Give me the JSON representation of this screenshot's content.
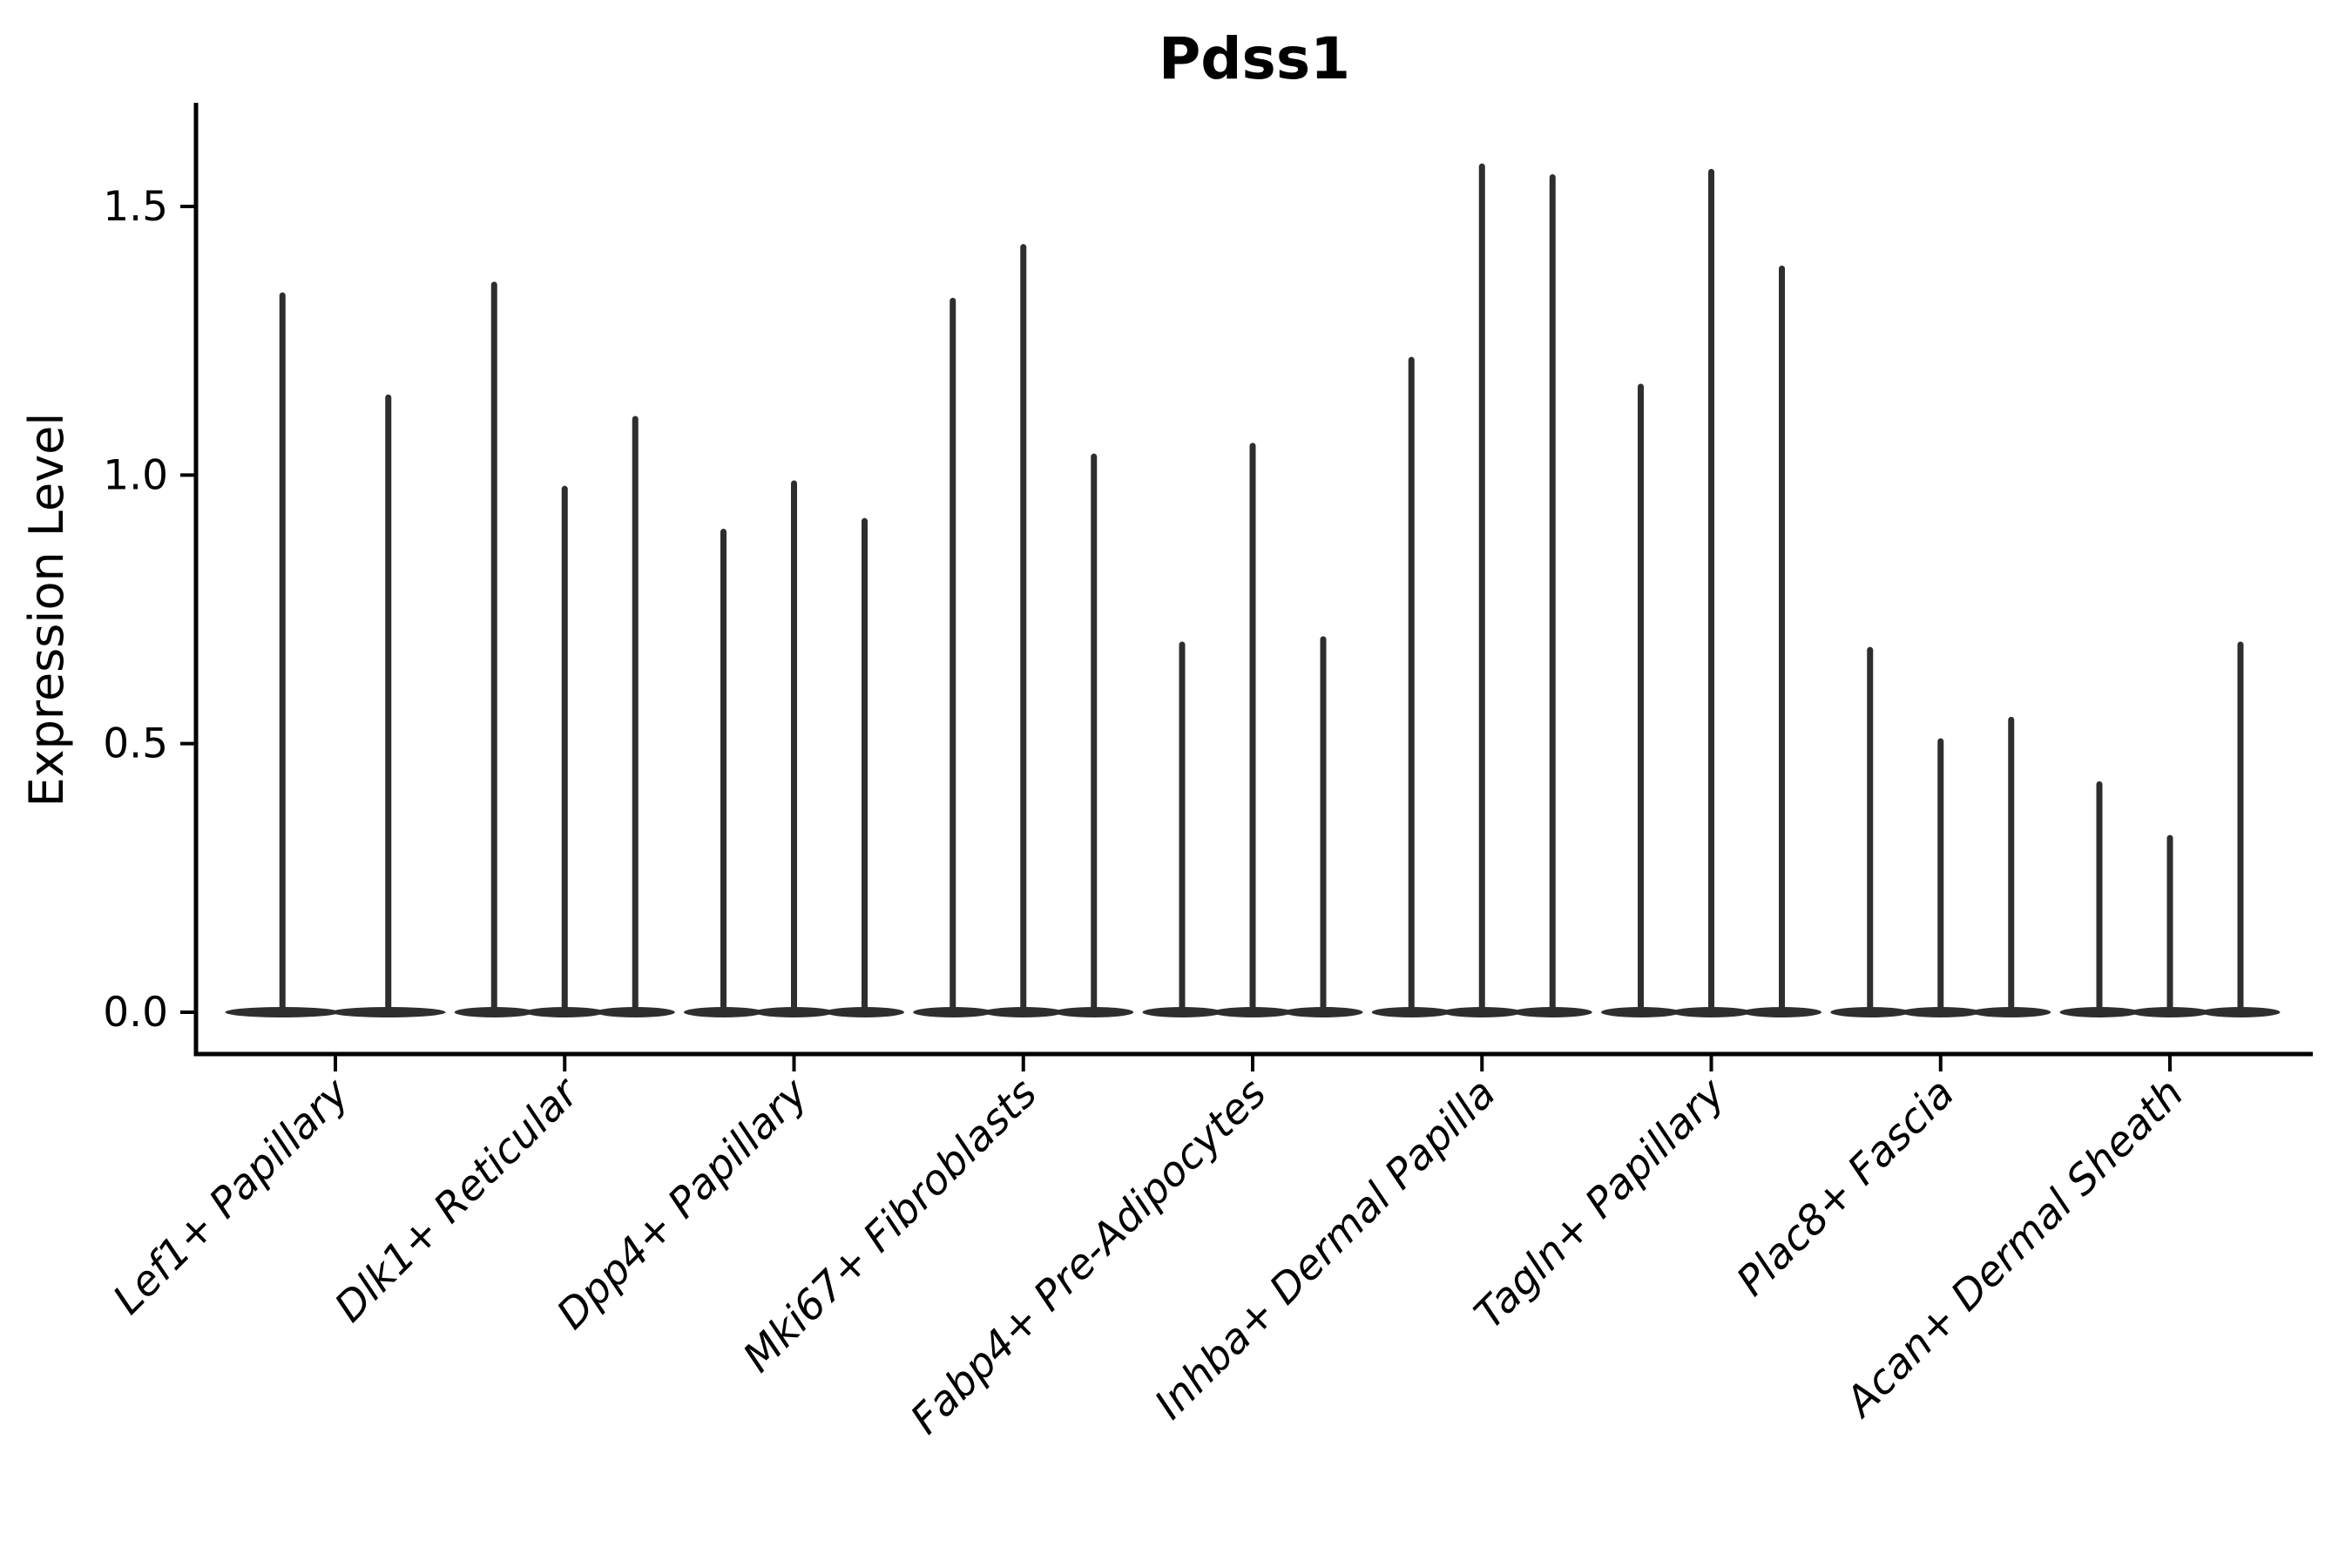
{
  "title": "Pdss1",
  "axes": {
    "ylabel": "Expression Level",
    "xlabel": "",
    "ytick_labels": [
      "0.0",
      "0.5",
      "1.0",
      "1.5"
    ]
  },
  "chart_data": {
    "type": "violin",
    "title": "Pdss1",
    "xlabel": "",
    "ylabel": "Expression Level",
    "ylim": [
      -0.08,
      1.69
    ],
    "yticks": [
      0.0,
      0.5,
      1.0,
      1.5
    ],
    "ytick_labels": [
      "0.0",
      "0.5",
      "1.0",
      "1.5"
    ],
    "grid": false,
    "legend_position": "none",
    "x_tick_label_rotation_deg": 45,
    "categories": [
      "Lef1+ Papillary",
      "Dlk1+ Reticular",
      "Dpp4+ Papillary",
      "Mki67+ Fibroblasts",
      "Fabp4+ Pre-Adipocytes",
      "Inhba+ Dermal Papilla",
      "Tagln+ Papillary",
      "Plac8+ Fascia",
      "Acan+ Dermal Sheath"
    ],
    "violins": [
      {
        "category": "Lef1+ Papillary",
        "maxima": [
          1.34,
          1.15
        ]
      },
      {
        "category": "Dlk1+ Reticular",
        "maxima": [
          1.36,
          0.98,
          1.11
        ]
      },
      {
        "category": "Dpp4+ Papillary",
        "maxima": [
          0.9,
          0.99,
          0.92
        ]
      },
      {
        "category": "Mki67+ Fibroblasts",
        "maxima": [
          1.33,
          1.43,
          1.04
        ]
      },
      {
        "category": "Fabp4+ Pre-Adipocytes",
        "maxima": [
          0.69,
          1.06,
          0.7
        ]
      },
      {
        "category": "Inhba+ Dermal Papilla",
        "maxima": [
          1.22,
          1.58,
          1.56
        ]
      },
      {
        "category": "Tagln+ Papillary",
        "maxima": [
          1.17,
          1.57,
          1.39
        ]
      },
      {
        "category": "Plac8+ Fascia",
        "maxima": [
          0.68,
          0.51,
          0.55
        ]
      },
      {
        "category": "Acan+ Dermal Sheath",
        "maxima": [
          0.43,
          0.33,
          0.69
        ]
      }
    ],
    "shape_note": "each violin is a zero-inflated density: wide mass at 0 with a thin tail rising to its maximum",
    "violin_color": "#2e2e2e",
    "axis_color": "#000000"
  }
}
